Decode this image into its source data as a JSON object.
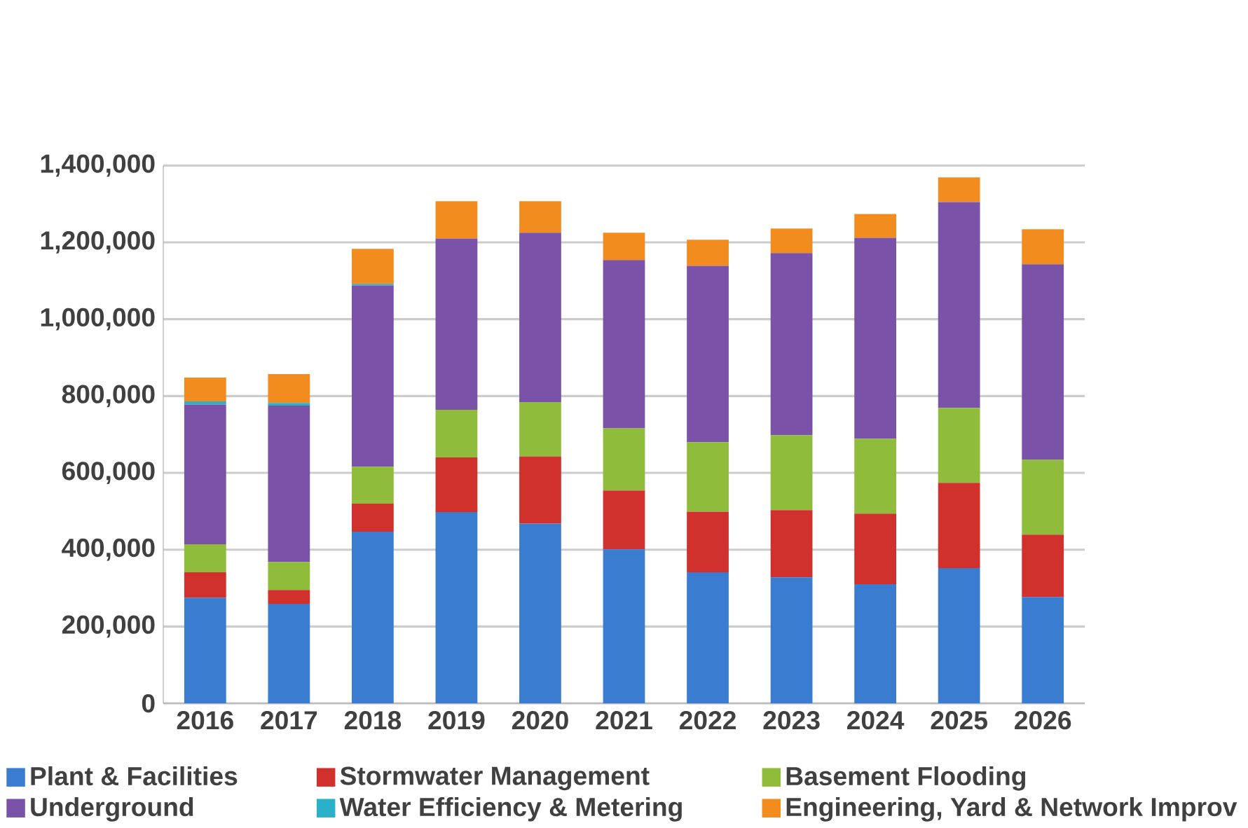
{
  "chart_data": {
    "type": "bar",
    "stacked": true,
    "grid": "y",
    "legend": "bottom",
    "categories": [
      "2016",
      "2017",
      "2018",
      "2019",
      "2020",
      "2021",
      "2022",
      "2023",
      "2024",
      "2025",
      "2026"
    ],
    "ylim": [
      0,
      1400000
    ],
    "yticks": [
      0,
      {
        "value": 200000,
        "label": "200,000"
      },
      {
        "value": 400000,
        "label": "400,000"
      },
      {
        "value": 600000,
        "label": "600,000"
      },
      {
        "value": 800000,
        "label": "800,000"
      },
      {
        "value": 1000000,
        "label": "1,000,000"
      },
      {
        "value": 1200000,
        "label": "1,200,000"
      },
      {
        "value": 1400000,
        "label": "1,400,000"
      }
    ],
    "series": [
      {
        "name": "Plant & Facilities",
        "color": "#3a7dd0",
        "values": [
          275000,
          259000,
          447000,
          498000,
          468000,
          401000,
          341000,
          328000,
          310000,
          352000,
          277000
        ]
      },
      {
        "name": "Stormwater Management",
        "color": "#d0312d",
        "values": [
          66000,
          36000,
          73000,
          142000,
          175000,
          153000,
          158000,
          175000,
          184000,
          222000,
          162000
        ]
      },
      {
        "name": "Basement Flooding",
        "color": "#8fbc3a",
        "values": [
          73000,
          73000,
          96000,
          124000,
          141000,
          162000,
          181000,
          195000,
          195000,
          195000,
          195000
        ]
      },
      {
        "name": "Underground",
        "color": "#7a52a8",
        "values": [
          364000,
          407000,
          472000,
          446000,
          441000,
          438000,
          459000,
          474000,
          523000,
          536000,
          509000
        ]
      },
      {
        "name": "Water Efficiency & Metering",
        "color": "#2ab0c8",
        "values": [
          8000,
          7000,
          4000,
          0,
          0,
          0,
          0,
          0,
          0,
          0,
          0
        ]
      },
      {
        "name": "Engineering, Yard & Network Improv",
        "color": "#f28c1e",
        "values": [
          62000,
          75000,
          91000,
          97000,
          82000,
          71000,
          68000,
          64000,
          62000,
          64000,
          91000
        ]
      }
    ]
  }
}
